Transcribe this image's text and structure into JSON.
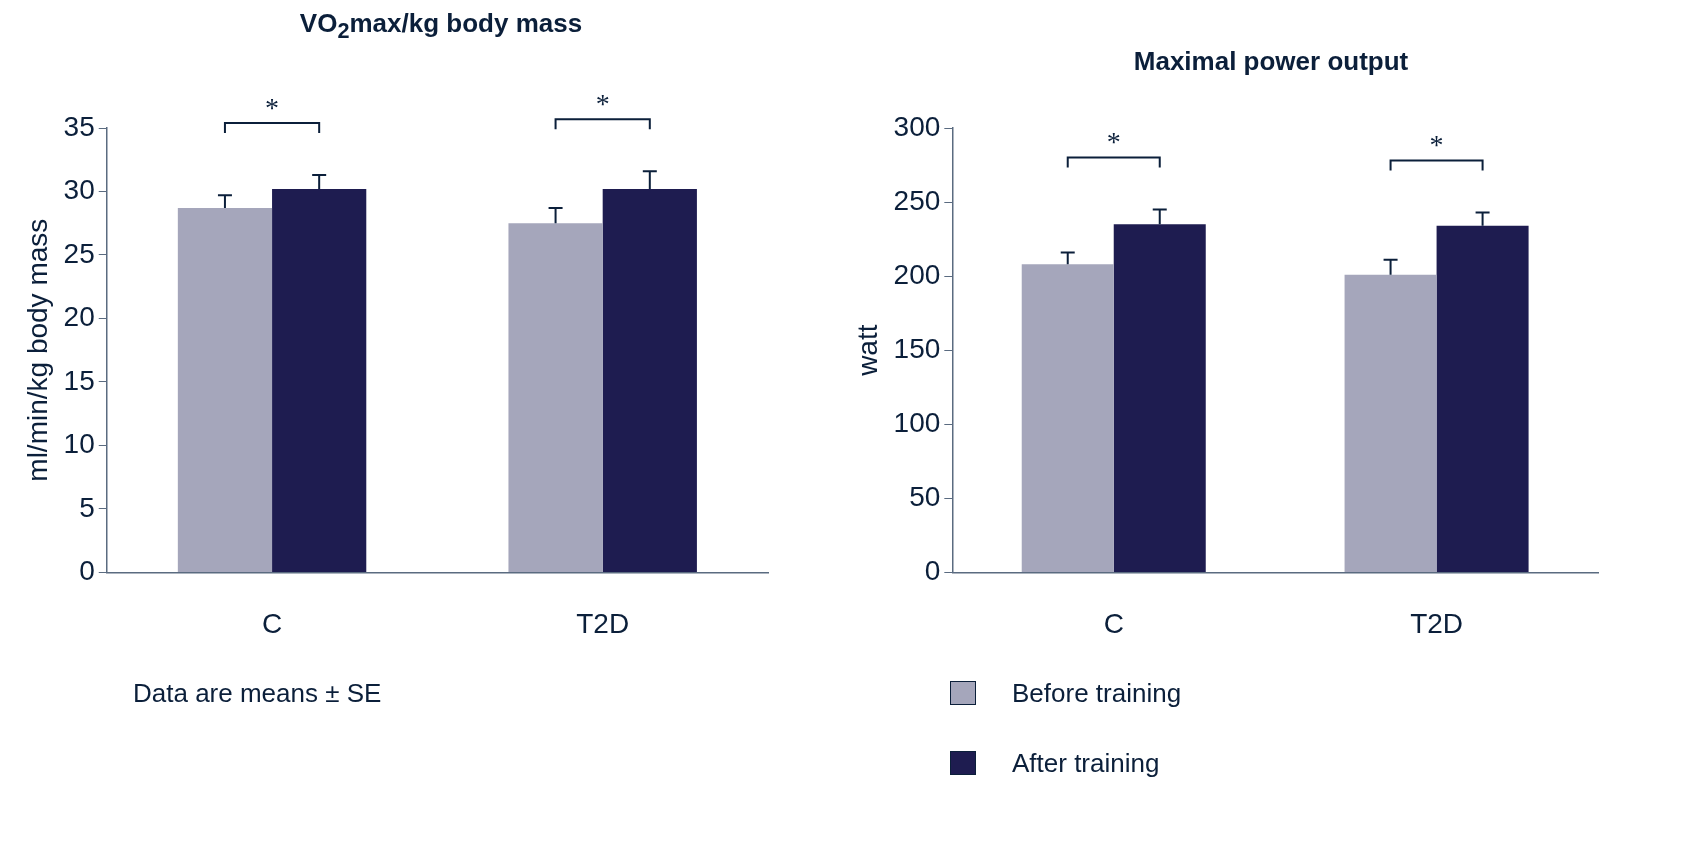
{
  "chart_data": [
    {
      "type": "bar",
      "title": "VO$_{2}$max/kg body mass",
      "ylabel": "ml/min/kg body mass",
      "categories": [
        "C",
        "T2D"
      ],
      "ylim": [
        0,
        35
      ],
      "yticks": [
        0,
        5,
        10,
        15,
        20,
        25,
        30,
        35
      ],
      "grid": false,
      "series": [
        {
          "color": "#a5a6bb",
          "values": [
            28.7,
            27.5
          ],
          "errors": [
            1.0,
            1.2
          ]
        },
        {
          "color": "#1e1c50",
          "values": [
            30.2,
            30.2
          ],
          "errors": [
            1.1,
            1.4
          ]
        }
      ],
      "annotations": [
        "*",
        "*",
        "Data are means ± SE"
      ]
    },
    {
      "type": "bar",
      "title": "Maximal power output",
      "ylabel": "watt",
      "categories": [
        "C",
        "T2D"
      ],
      "ylim": [
        0,
        300
      ],
      "yticks": [
        0,
        50,
        100,
        150,
        200,
        250,
        300
      ],
      "grid": false,
      "legend": "bottom left",
      "series": [
        {
          "name": "Before training",
          "color": "#a5a6bb",
          "values": [
            208,
            201
          ],
          "errors": [
            8,
            10
          ]
        },
        {
          "name": "After training",
          "color": "#1e1c50",
          "values": [
            235,
            234
          ],
          "errors": [
            10,
            9
          ]
        }
      ],
      "annotations": [
        "*",
        "*"
      ]
    }
  ]
}
